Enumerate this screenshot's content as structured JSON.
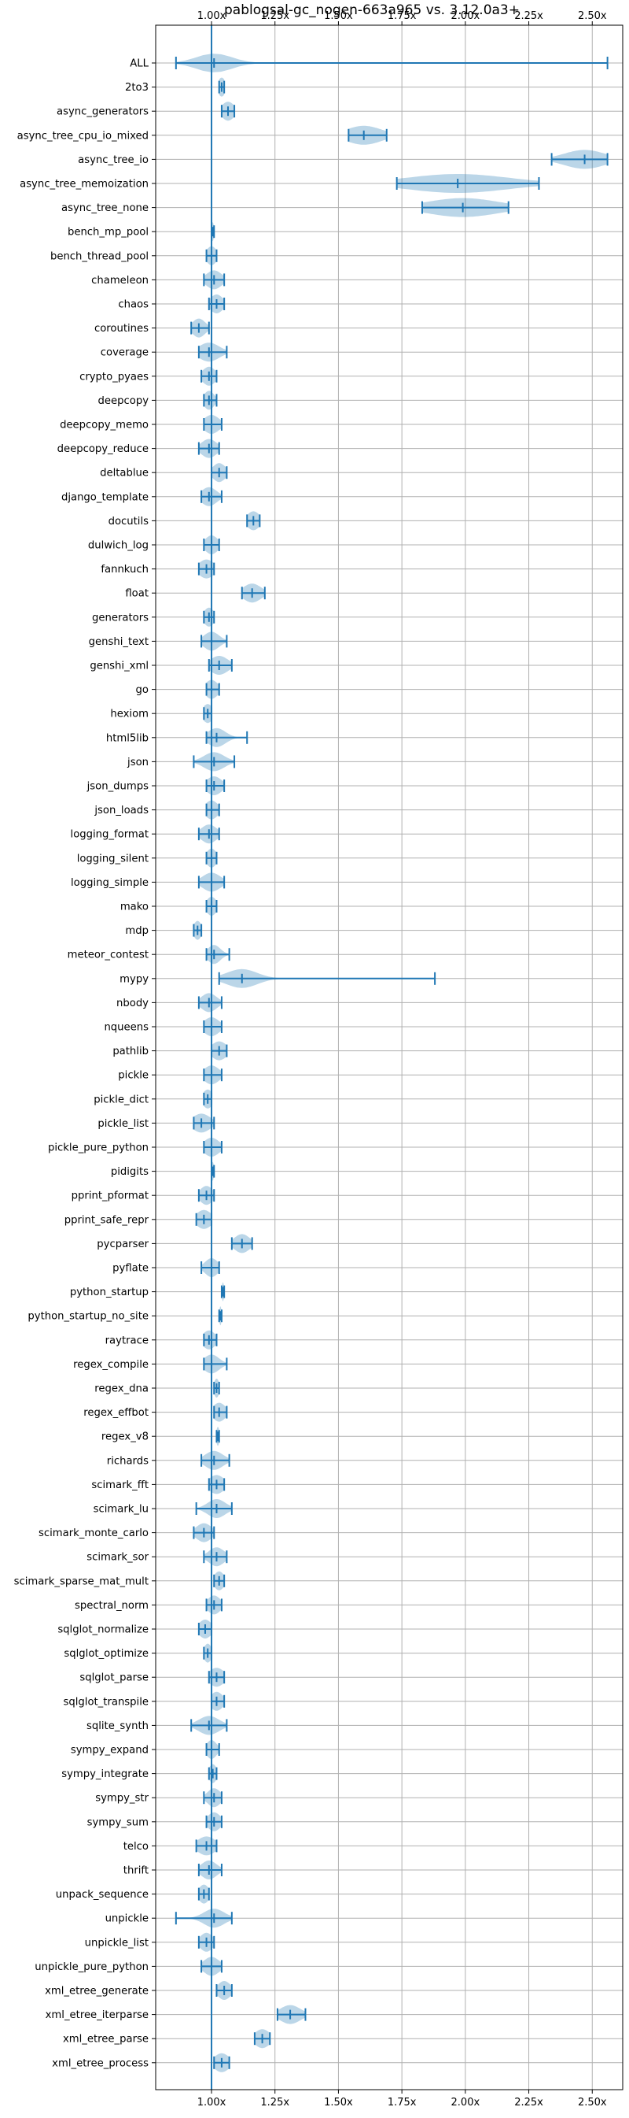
{
  "chart_data": {
    "type": "violin",
    "title": "pablogsal-gc_nogen-663a965 vs. 3.12.0a3+",
    "orientation": "horizontal",
    "xlim": [
      0.78,
      2.62
    ],
    "xticks": [
      1.0,
      1.25,
      1.5,
      1.75,
      2.0,
      2.25,
      2.5
    ],
    "xtick_labels": [
      "1.00x",
      "1.25x",
      "1.50x",
      "1.75x",
      "2.00x",
      "2.25x",
      "2.50x"
    ],
    "tick_positions": [
      "top",
      "bottom"
    ],
    "grid": true,
    "reference_line": 1.0,
    "colors": {
      "violin": "#1f77b4",
      "grid": "#b0b0b0"
    },
    "benchmarks": [
      {
        "name": "ALL",
        "min": 0.86,
        "max": 2.56,
        "center": 1.01,
        "width": 0.07
      },
      {
        "name": "2to3",
        "min": 1.03,
        "max": 1.05,
        "center": 1.04,
        "width": 0.015
      },
      {
        "name": "async_generators",
        "min": 1.04,
        "max": 1.09,
        "center": 1.065,
        "width": 0.025
      },
      {
        "name": "async_tree_cpu_io_mixed",
        "min": 1.54,
        "max": 1.69,
        "center": 1.6,
        "width": 0.07
      },
      {
        "name": "async_tree_io",
        "min": 2.34,
        "max": 2.56,
        "center": 2.47,
        "width": 0.08
      },
      {
        "name": "async_tree_memoization",
        "min": 1.73,
        "max": 2.29,
        "center": 1.97,
        "width": 0.2
      },
      {
        "name": "async_tree_none",
        "min": 1.83,
        "max": 2.17,
        "center": 1.99,
        "width": 0.14
      },
      {
        "name": "bench_mp_pool",
        "min": 1.0,
        "max": 1.01,
        "center": 1.005,
        "width": 0.004
      },
      {
        "name": "bench_thread_pool",
        "min": 0.98,
        "max": 1.02,
        "center": 1.0,
        "width": 0.02
      },
      {
        "name": "chameleon",
        "min": 0.97,
        "max": 1.05,
        "center": 1.01,
        "width": 0.03
      },
      {
        "name": "chaos",
        "min": 0.99,
        "max": 1.05,
        "center": 1.02,
        "width": 0.025
      },
      {
        "name": "coroutines",
        "min": 0.92,
        "max": 0.99,
        "center": 0.95,
        "width": 0.025
      },
      {
        "name": "coverage",
        "min": 0.95,
        "max": 1.06,
        "center": 0.99,
        "width": 0.04
      },
      {
        "name": "crypto_pyaes",
        "min": 0.96,
        "max": 1.02,
        "center": 0.99,
        "width": 0.025
      },
      {
        "name": "deepcopy",
        "min": 0.97,
        "max": 1.02,
        "center": 0.99,
        "width": 0.02
      },
      {
        "name": "deepcopy_memo",
        "min": 0.97,
        "max": 1.04,
        "center": 1.0,
        "width": 0.03
      },
      {
        "name": "deepcopy_reduce",
        "min": 0.95,
        "max": 1.03,
        "center": 0.99,
        "width": 0.03
      },
      {
        "name": "deltablue",
        "min": 1.0,
        "max": 1.06,
        "center": 1.03,
        "width": 0.025
      },
      {
        "name": "django_template",
        "min": 0.96,
        "max": 1.04,
        "center": 0.99,
        "width": 0.03
      },
      {
        "name": "docutils",
        "min": 1.14,
        "max": 1.19,
        "center": 1.165,
        "width": 0.025
      },
      {
        "name": "dulwich_log",
        "min": 0.97,
        "max": 1.03,
        "center": 1.0,
        "width": 0.025
      },
      {
        "name": "fannkuch",
        "min": 0.95,
        "max": 1.01,
        "center": 0.98,
        "width": 0.03
      },
      {
        "name": "float",
        "min": 1.12,
        "max": 1.21,
        "center": 1.16,
        "width": 0.035
      },
      {
        "name": "generators",
        "min": 0.97,
        "max": 1.01,
        "center": 0.99,
        "width": 0.02
      },
      {
        "name": "genshi_text",
        "min": 0.96,
        "max": 1.06,
        "center": 1.0,
        "width": 0.03
      },
      {
        "name": "genshi_xml",
        "min": 0.99,
        "max": 1.08,
        "center": 1.03,
        "width": 0.035
      },
      {
        "name": "go",
        "min": 0.98,
        "max": 1.03,
        "center": 1.0,
        "width": 0.025
      },
      {
        "name": "hexiom",
        "min": 0.97,
        "max": 1.0,
        "center": 0.985,
        "width": 0.02
      },
      {
        "name": "html5lib",
        "min": 0.98,
        "max": 1.14,
        "center": 1.02,
        "width": 0.035
      },
      {
        "name": "json",
        "min": 0.93,
        "max": 1.09,
        "center": 1.01,
        "width": 0.04
      },
      {
        "name": "json_dumps",
        "min": 0.98,
        "max": 1.05,
        "center": 1.01,
        "width": 0.03
      },
      {
        "name": "json_loads",
        "min": 0.98,
        "max": 1.03,
        "center": 1.0,
        "width": 0.025
      },
      {
        "name": "logging_format",
        "min": 0.95,
        "max": 1.03,
        "center": 0.99,
        "width": 0.03
      },
      {
        "name": "logging_silent",
        "min": 0.98,
        "max": 1.02,
        "center": 1.0,
        "width": 0.02
      },
      {
        "name": "logging_simple",
        "min": 0.95,
        "max": 1.05,
        "center": 1.0,
        "width": 0.035
      },
      {
        "name": "mako",
        "min": 0.98,
        "max": 1.02,
        "center": 1.0,
        "width": 0.02
      },
      {
        "name": "mdp",
        "min": 0.93,
        "max": 0.96,
        "center": 0.945,
        "width": 0.015
      },
      {
        "name": "meteor_contest",
        "min": 0.98,
        "max": 1.07,
        "center": 1.01,
        "width": 0.025
      },
      {
        "name": "mypy",
        "min": 1.03,
        "max": 1.88,
        "center": 1.12,
        "width": 0.06
      },
      {
        "name": "nbody",
        "min": 0.95,
        "max": 1.04,
        "center": 0.99,
        "width": 0.03
      },
      {
        "name": "nqueens",
        "min": 0.97,
        "max": 1.04,
        "center": 1.0,
        "width": 0.03
      },
      {
        "name": "pathlib",
        "min": 1.0,
        "max": 1.06,
        "center": 1.03,
        "width": 0.03
      },
      {
        "name": "pickle",
        "min": 0.97,
        "max": 1.04,
        "center": 1.0,
        "width": 0.03
      },
      {
        "name": "pickle_dict",
        "min": 0.97,
        "max": 1.0,
        "center": 0.985,
        "width": 0.02
      },
      {
        "name": "pickle_list",
        "min": 0.93,
        "max": 1.01,
        "center": 0.96,
        "width": 0.035
      },
      {
        "name": "pickle_pure_python",
        "min": 0.97,
        "max": 1.04,
        "center": 1.0,
        "width": 0.03
      },
      {
        "name": "pidigits",
        "min": 1.0,
        "max": 1.01,
        "center": 1.005,
        "width": 0.004
      },
      {
        "name": "pprint_pformat",
        "min": 0.95,
        "max": 1.01,
        "center": 0.98,
        "width": 0.025
      },
      {
        "name": "pprint_safe_repr",
        "min": 0.94,
        "max": 1.0,
        "center": 0.97,
        "width": 0.03
      },
      {
        "name": "pycparser",
        "min": 1.08,
        "max": 1.16,
        "center": 1.12,
        "width": 0.03
      },
      {
        "name": "pyflate",
        "min": 0.96,
        "max": 1.03,
        "center": 1.0,
        "width": 0.025
      },
      {
        "name": "python_startup",
        "min": 1.04,
        "max": 1.05,
        "center": 1.045,
        "width": 0.004
      },
      {
        "name": "python_startup_no_site",
        "min": 1.03,
        "max": 1.04,
        "center": 1.035,
        "width": 0.004
      },
      {
        "name": "raytrace",
        "min": 0.97,
        "max": 1.02,
        "center": 0.99,
        "width": 0.025
      },
      {
        "name": "regex_compile",
        "min": 0.97,
        "max": 1.06,
        "center": 1.0,
        "width": 0.03
      },
      {
        "name": "regex_dna",
        "min": 1.01,
        "max": 1.03,
        "center": 1.02,
        "width": 0.01
      },
      {
        "name": "regex_effbot",
        "min": 1.01,
        "max": 1.06,
        "center": 1.03,
        "width": 0.025
      },
      {
        "name": "regex_v8",
        "min": 1.02,
        "max": 1.03,
        "center": 1.025,
        "width": 0.006
      },
      {
        "name": "richards",
        "min": 0.96,
        "max": 1.07,
        "center": 1.01,
        "width": 0.035
      },
      {
        "name": "scimark_fft",
        "min": 0.99,
        "max": 1.05,
        "center": 1.02,
        "width": 0.03
      },
      {
        "name": "scimark_lu",
        "min": 0.94,
        "max": 1.08,
        "center": 1.02,
        "width": 0.035
      },
      {
        "name": "scimark_monte_carlo",
        "min": 0.93,
        "max": 1.01,
        "center": 0.97,
        "width": 0.03
      },
      {
        "name": "scimark_sor",
        "min": 0.97,
        "max": 1.06,
        "center": 1.02,
        "width": 0.03
      },
      {
        "name": "scimark_sparse_mat_mult",
        "min": 1.01,
        "max": 1.05,
        "center": 1.03,
        "width": 0.02
      },
      {
        "name": "spectral_norm",
        "min": 0.98,
        "max": 1.04,
        "center": 1.01,
        "width": 0.025
      },
      {
        "name": "sqlglot_normalize",
        "min": 0.95,
        "max": 1.0,
        "center": 0.975,
        "width": 0.025
      },
      {
        "name": "sqlglot_optimize",
        "min": 0.97,
        "max": 1.0,
        "center": 0.985,
        "width": 0.015
      },
      {
        "name": "sqlglot_parse",
        "min": 0.99,
        "max": 1.05,
        "center": 1.02,
        "width": 0.03
      },
      {
        "name": "sqlglot_transpile",
        "min": 1.0,
        "max": 1.05,
        "center": 1.02,
        "width": 0.025
      },
      {
        "name": "sqlite_synth",
        "min": 0.92,
        "max": 1.06,
        "center": 0.99,
        "width": 0.04
      },
      {
        "name": "sympy_expand",
        "min": 0.98,
        "max": 1.03,
        "center": 1.0,
        "width": 0.02
      },
      {
        "name": "sympy_integrate",
        "min": 0.99,
        "max": 1.02,
        "center": 1.005,
        "width": 0.015
      },
      {
        "name": "sympy_str",
        "min": 0.97,
        "max": 1.04,
        "center": 1.01,
        "width": 0.025
      },
      {
        "name": "sympy_sum",
        "min": 0.98,
        "max": 1.04,
        "center": 1.01,
        "width": 0.025
      },
      {
        "name": "telco",
        "min": 0.94,
        "max": 1.02,
        "center": 0.98,
        "width": 0.035
      },
      {
        "name": "thrift",
        "min": 0.95,
        "max": 1.04,
        "center": 0.99,
        "width": 0.03
      },
      {
        "name": "unpack_sequence",
        "min": 0.95,
        "max": 0.99,
        "center": 0.97,
        "width": 0.02
      },
      {
        "name": "unpickle",
        "min": 0.86,
        "max": 1.08,
        "center": 1.01,
        "width": 0.04
      },
      {
        "name": "unpickle_list",
        "min": 0.95,
        "max": 1.01,
        "center": 0.98,
        "width": 0.025
      },
      {
        "name": "unpickle_pure_python",
        "min": 0.96,
        "max": 1.04,
        "center": 1.0,
        "width": 0.03
      },
      {
        "name": "xml_etree_generate",
        "min": 1.02,
        "max": 1.08,
        "center": 1.05,
        "width": 0.025
      },
      {
        "name": "xml_etree_iterparse",
        "min": 1.26,
        "max": 1.37,
        "center": 1.31,
        "width": 0.04
      },
      {
        "name": "xml_etree_parse",
        "min": 1.17,
        "max": 1.23,
        "center": 1.2,
        "width": 0.03
      },
      {
        "name": "xml_etree_process",
        "min": 1.01,
        "max": 1.07,
        "center": 1.04,
        "width": 0.03
      }
    ]
  }
}
